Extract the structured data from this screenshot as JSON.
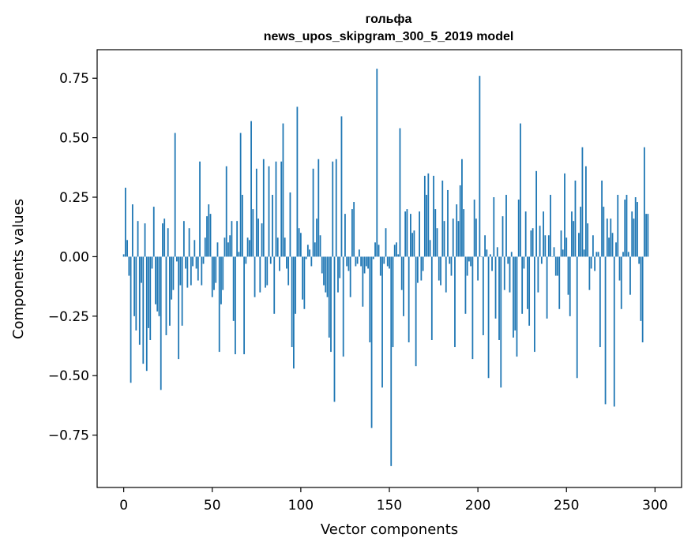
{
  "chart_data": {
    "type": "bar",
    "title_line1": "гольфа",
    "title_line2": "news_upos_skipgram_300_5_2019 model",
    "xlabel": "Vector components",
    "ylabel": "Components values",
    "xlim": [
      -15,
      315
    ],
    "ylim": [
      -0.97,
      0.87
    ],
    "x_ticks": [
      0,
      50,
      100,
      150,
      200,
      250,
      300
    ],
    "y_ticks": [
      -0.75,
      -0.5,
      -0.25,
      0.0,
      0.25,
      0.5,
      0.75
    ],
    "x_tick_labels": [
      "0",
      "50",
      "100",
      "150",
      "200",
      "250",
      "300"
    ],
    "y_tick_labels": [
      "−0.75",
      "−0.50",
      "−0.25",
      "0.00",
      "0.25",
      "0.50",
      "0.75"
    ],
    "bar_color": "#1f77b4",
    "values": [
      0.01,
      0.29,
      0.07,
      -0.08,
      -0.53,
      0.22,
      -0.25,
      -0.31,
      0.15,
      -0.37,
      -0.11,
      -0.45,
      0.14,
      -0.48,
      -0.3,
      -0.35,
      -0.05,
      0.21,
      -0.2,
      -0.23,
      -0.25,
      -0.56,
      0.14,
      0.16,
      -0.33,
      0.12,
      -0.29,
      -0.18,
      -0.14,
      0.52,
      -0.02,
      -0.43,
      -0.12,
      -0.29,
      0.15,
      -0.05,
      -0.13,
      0.12,
      -0.12,
      -0.04,
      0.07,
      -0.05,
      -0.1,
      0.4,
      -0.12,
      -0.03,
      0.08,
      0.17,
      0.22,
      0.18,
      -0.17,
      -0.14,
      -0.11,
      0.06,
      -0.4,
      -0.2,
      -0.14,
      0.08,
      0.38,
      0.06,
      0.09,
      0.15,
      -0.27,
      -0.41,
      0.15,
      0.02,
      0.52,
      0.26,
      -0.41,
      -0.03,
      0.08,
      0.07,
      0.57,
      0.2,
      -0.17,
      0.37,
      0.16,
      -0.15,
      0.14,
      0.41,
      -0.13,
      -0.12,
      0.38,
      -0.03,
      0.26,
      -0.24,
      0.4,
      0.08,
      -0.06,
      0.4,
      0.56,
      0.08,
      -0.05,
      -0.12,
      0.27,
      -0.38,
      -0.47,
      -0.24,
      0.63,
      0.12,
      0.1,
      -0.18,
      -0.22,
      -0.01,
      0.05,
      0.03,
      -0.04,
      0.37,
      0.06,
      0.16,
      0.41,
      0.09,
      -0.07,
      -0.12,
      -0.15,
      -0.17,
      -0.34,
      -0.4,
      0.4,
      -0.61,
      0.41,
      -0.15,
      -0.09,
      0.59,
      -0.42,
      0.18,
      -0.04,
      -0.06,
      -0.17,
      0.2,
      0.23,
      -0.04,
      -0.03,
      0.03,
      -0.04,
      -0.21,
      -0.07,
      -0.04,
      -0.05,
      -0.36,
      -0.72,
      -0.01,
      0.06,
      0.79,
      0.05,
      -0.08,
      -0.55,
      -0.03,
      0.12,
      -0.04,
      -0.05,
      -0.88,
      -0.38,
      0.05,
      0.06,
      0.01,
      0.54,
      -0.14,
      -0.25,
      0.19,
      0.2,
      -0.36,
      0.18,
      0.1,
      0.11,
      -0.46,
      -0.11,
      0.19,
      -0.1,
      -0.06,
      0.34,
      0.26,
      0.35,
      0.07,
      -0.35,
      0.34,
      0.2,
      0.12,
      -0.1,
      -0.12,
      0.32,
      0.15,
      -0.15,
      0.28,
      -0.03,
      -0.08,
      0.16,
      -0.38,
      0.22,
      0.15,
      0.3,
      0.41,
      0.2,
      -0.24,
      -0.08,
      -0.02,
      -0.04,
      -0.43,
      0.24,
      0.16,
      -0.1,
      0.76,
      0.0,
      -0.33,
      0.09,
      0.03,
      -0.51,
      0.01,
      -0.06,
      0.25,
      -0.26,
      0.04,
      -0.35,
      -0.55,
      0.17,
      -0.14,
      0.26,
      -0.03,
      -0.15,
      0.02,
      -0.34,
      -0.31,
      -0.42,
      0.24,
      0.56,
      -0.24,
      -0.05,
      0.19,
      -0.22,
      -0.29,
      0.11,
      0.12,
      -0.4,
      0.36,
      -0.15,
      0.13,
      -0.03,
      0.19,
      0.09,
      -0.26,
      0.09,
      0.26,
      0.0,
      0.04,
      -0.08,
      -0.08,
      -0.22,
      0.11,
      0.03,
      0.35,
      0.08,
      -0.16,
      -0.25,
      0.19,
      0.15,
      0.32,
      -0.51,
      0.1,
      0.21,
      0.46,
      0.03,
      0.38,
      0.14,
      -0.14,
      -0.05,
      0.09,
      -0.06,
      0.02,
      0.02,
      -0.38,
      0.32,
      0.21,
      -0.62,
      0.16,
      0.08,
      0.16,
      0.1,
      -0.63,
      0.06,
      0.26,
      -0.1,
      -0.22,
      0.02,
      0.24,
      0.26,
      0.02,
      -0.16,
      0.19,
      0.16,
      0.25,
      0.23,
      -0.03,
      -0.27,
      -0.36,
      0.46,
      0.18,
      0.18
    ]
  }
}
